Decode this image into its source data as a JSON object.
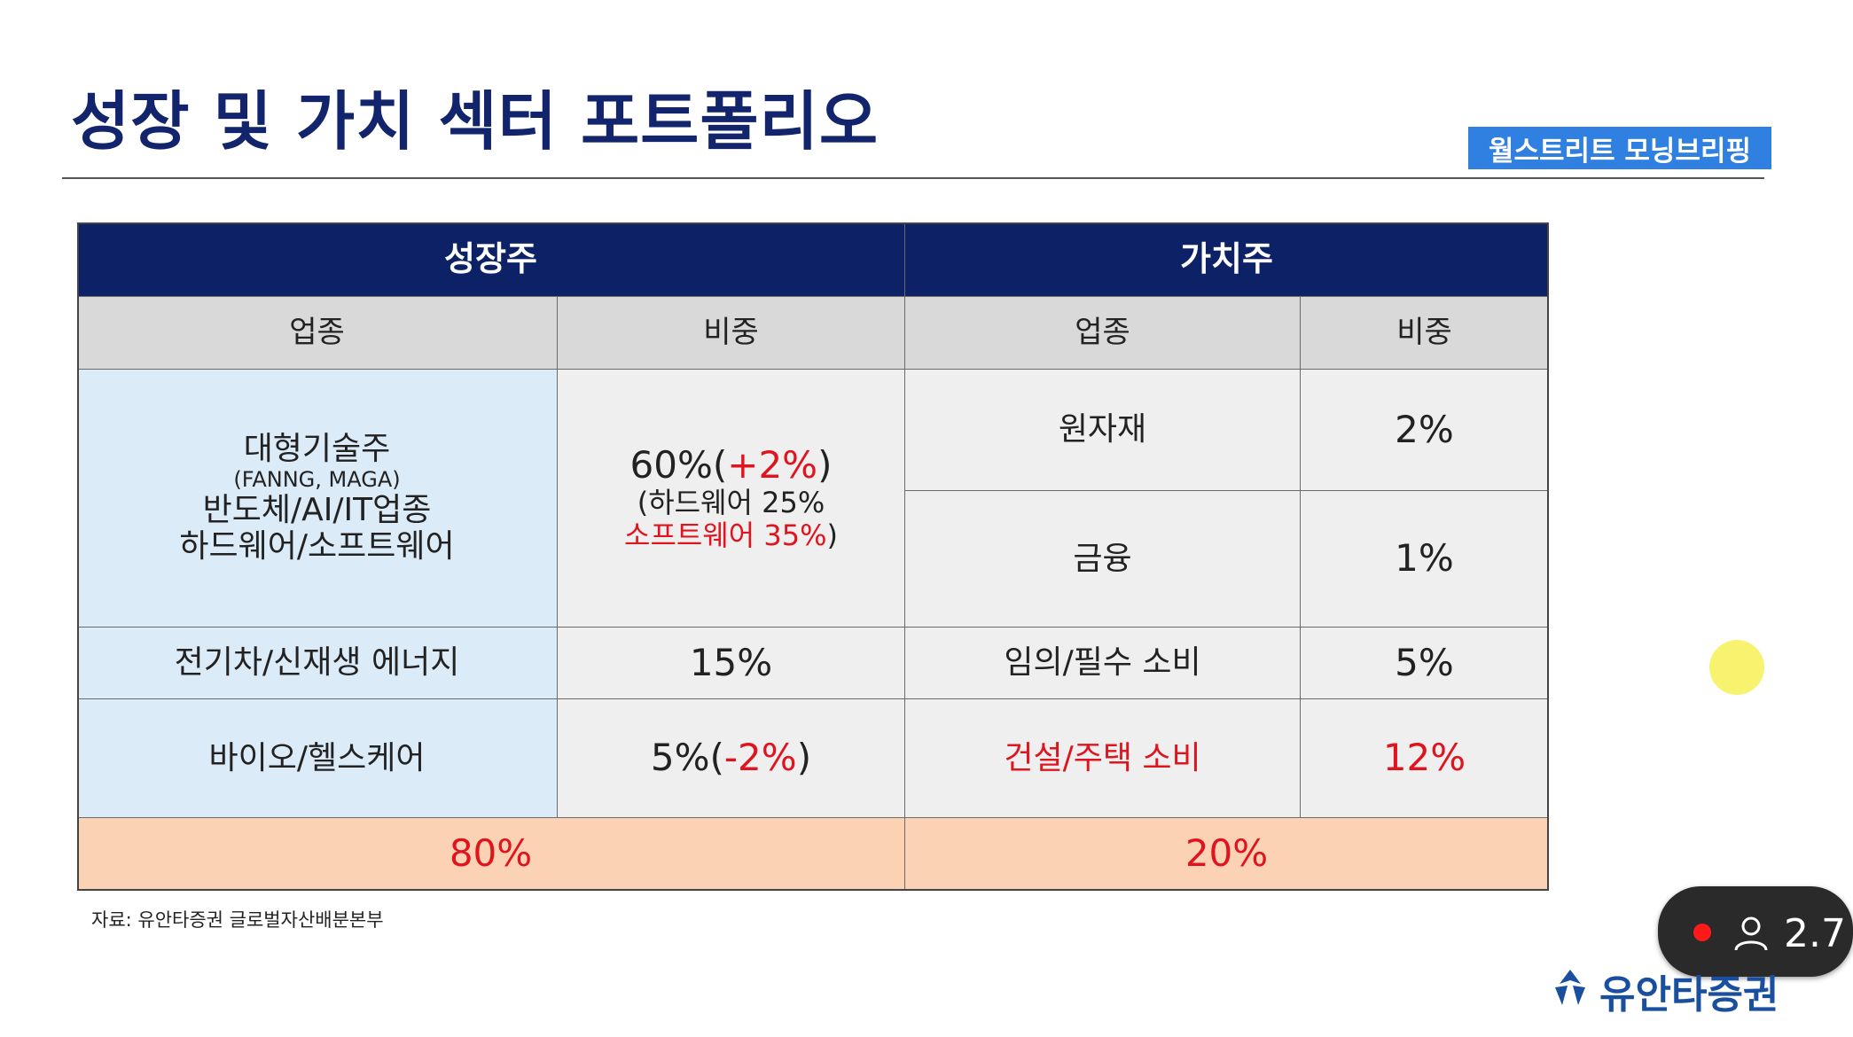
{
  "title": "성장 및 가치 섹터 포트폴리오",
  "brand_badge": "월스트리트 모닝브리핑",
  "table": {
    "growth_header": "성장주",
    "value_header": "가치주",
    "col_sector": "업종",
    "col_weight": "비중",
    "growth_rows": [
      {
        "sector_lines": [
          "대형기술주",
          "(FANNG, MAGA)",
          "반도체/AI/IT업종",
          "하드웨어/소프트웨어"
        ],
        "weight_main": "60%(",
        "weight_change": "+2%",
        "weight_close": ")",
        "weight_sub_1": "(하드웨어 25%",
        "weight_sub_2_red": "소프트웨어 35%",
        "weight_sub_2_close": ")"
      },
      {
        "sector": "전기차/신재생 에너지",
        "weight": "15%"
      },
      {
        "sector": "바이오/헬스케어",
        "weight_main": "5%(",
        "weight_change": "-2%",
        "weight_close": ")"
      }
    ],
    "value_rows": [
      {
        "sector": "원자재",
        "weight": "2%"
      },
      {
        "sector": "금융",
        "weight": "1%"
      },
      {
        "sector": "임의/필수 소비",
        "weight": "5%"
      },
      {
        "sector": "건설/주택 소비",
        "weight": "12%"
      }
    ],
    "growth_total": "80%",
    "value_total": "20%"
  },
  "source": "자료: 유안타증권 글로벌자산배분본부",
  "viewer_count": "2.7",
  "logo_text": "유안타증권",
  "colors": {
    "title": "#12246b",
    "header_bg": "#0d2266",
    "badge_bg": "#2f80e0",
    "highlight_red": "#e0141e",
    "total_bg": "#fbd3b4",
    "growth_cell_bg": "#dcebf8"
  }
}
